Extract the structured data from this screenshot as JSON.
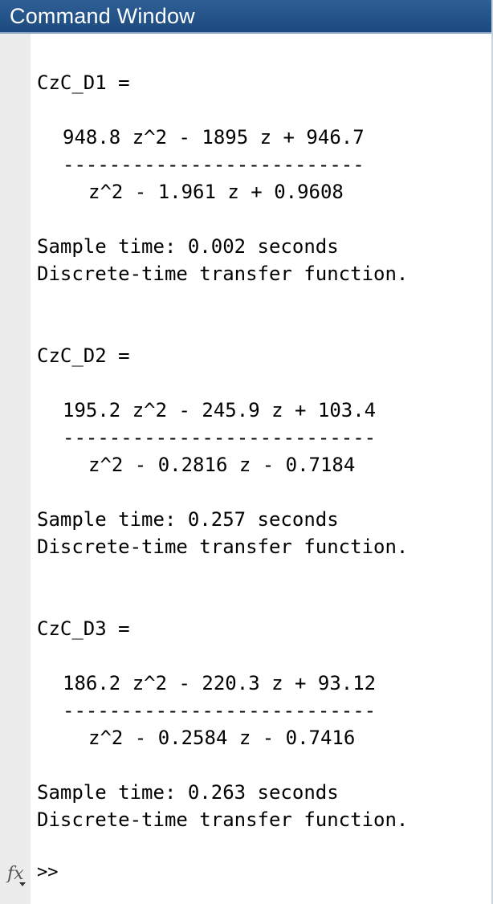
{
  "window": {
    "title": "Command Window"
  },
  "outputs": [
    {
      "name_line": "CzC_D1 =",
      "numerator": "948.8 z^2 - 1895 z + 946.7",
      "divider": "--------------------------",
      "denominator": "z^2 - 1.961 z + 0.9608",
      "sample_time": "Sample time: 0.002 seconds",
      "description": "Discrete-time transfer function."
    },
    {
      "name_line": "CzC_D2 =",
      "numerator": "195.2 z^2 - 245.9 z + 103.4",
      "divider": "---------------------------",
      "denominator": "z^2 - 0.2816 z - 0.7184",
      "sample_time": "Sample time: 0.257 seconds",
      "description": "Discrete-time transfer function."
    },
    {
      "name_line": "CzC_D3 =",
      "numerator": "186.2 z^2 - 220.3 z + 93.12",
      "divider": "---------------------------",
      "denominator": "z^2 - 0.2584 z - 0.7416",
      "sample_time": "Sample time: 0.263 seconds",
      "description": "Discrete-time transfer function."
    }
  ],
  "prompt": {
    "fx_icon": "fx-icon",
    "symbol": ">>"
  },
  "colors": {
    "titlebar": "#1c4a7e",
    "gutter": "#ececec",
    "text": "#000000"
  }
}
